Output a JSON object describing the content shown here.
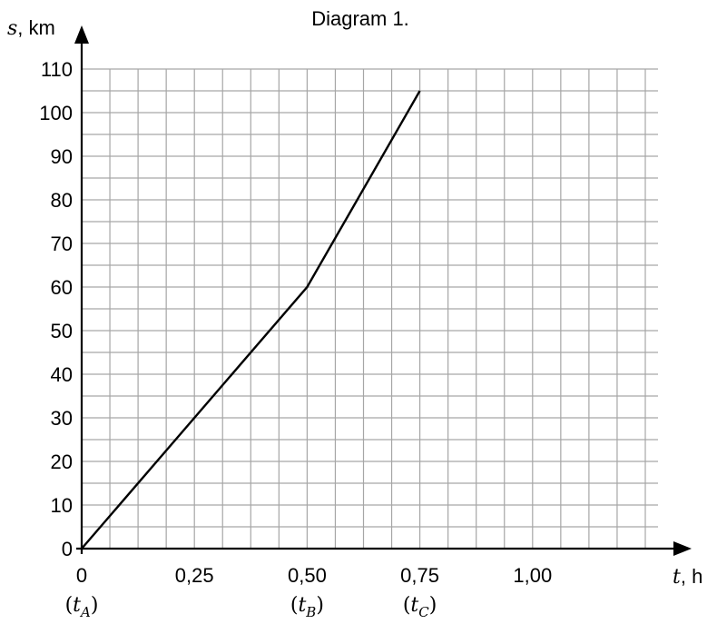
{
  "chart_data": {
    "type": "line",
    "title": "Diagram 1.",
    "y_axis": {
      "variable": "s",
      "unit": ", km",
      "ylim": [
        0,
        110
      ],
      "tick_step": 10,
      "minor_step": 5
    },
    "x_axis": {
      "variable": "t",
      "unit": ", h",
      "xlim": [
        0,
        1.25
      ],
      "tick_step": 0.25,
      "minor_step": 0.0625
    },
    "y_ticks": [
      "0",
      "10",
      "20",
      "30",
      "40",
      "50",
      "60",
      "70",
      "80",
      "90",
      "100",
      "110"
    ],
    "x_ticks": [
      {
        "value": 0,
        "label": "0"
      },
      {
        "value": 0.25,
        "label": "0,25"
      },
      {
        "value": 0.5,
        "label": "0,50"
      },
      {
        "value": 0.75,
        "label": "0,75"
      },
      {
        "value": 1.0,
        "label": "1,00"
      }
    ],
    "time_markers": [
      {
        "value": 0,
        "var": "t",
        "sub": "A"
      },
      {
        "value": 0.5,
        "var": "t",
        "sub": "B"
      },
      {
        "value": 0.75,
        "var": "t",
        "sub": "C"
      }
    ],
    "series": [
      {
        "x": [
          0,
          0.5,
          0.75
        ],
        "y": [
          0,
          60,
          105
        ]
      }
    ],
    "grid": true,
    "colors": {
      "line": "#000000",
      "grid": "#a6a6a6",
      "axis": "#000000"
    }
  }
}
